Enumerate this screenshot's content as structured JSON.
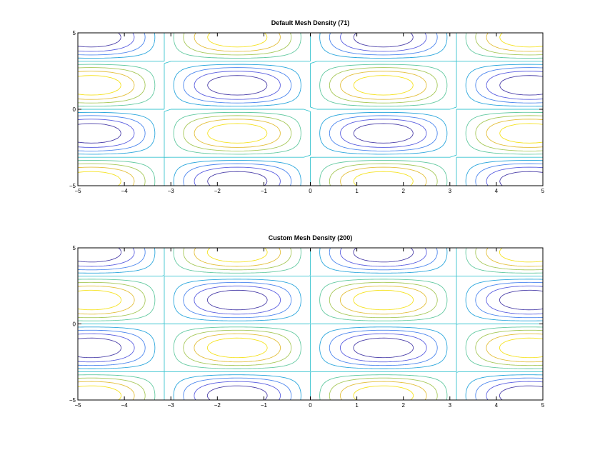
{
  "chart_data": [
    {
      "type": "contour",
      "title": "Default Mesh Density (71)",
      "function": "sin(x)*sin(y)",
      "mesh_density": 71,
      "xlim": [
        -5,
        5
      ],
      "ylim": [
        -5,
        5
      ],
      "xticks": [
        -5,
        -4,
        -3,
        -2,
        -1,
        0,
        1,
        2,
        3,
        4,
        5
      ],
      "yticks": [
        -5,
        0,
        5
      ],
      "levels": [
        -0.8,
        -0.6,
        -0.4,
        -0.2,
        0,
        0.2,
        0.4,
        0.6,
        0.8
      ],
      "colormap": "parula",
      "grid": false
    },
    {
      "type": "contour",
      "title": "Custom Mesh Density (200)",
      "function": "sin(x)*sin(y)",
      "mesh_density": 200,
      "xlim": [
        -5,
        5
      ],
      "ylim": [
        -5,
        5
      ],
      "xticks": [
        -5,
        -4,
        -3,
        -2,
        -1,
        0,
        1,
        2,
        3,
        4,
        5
      ],
      "yticks": [
        -5,
        0,
        5
      ],
      "levels": [
        -0.8,
        -0.6,
        -0.4,
        -0.2,
        0,
        0.2,
        0.4,
        0.6,
        0.8
      ],
      "colormap": "parula",
      "grid": false
    }
  ],
  "colors": {
    "level_-0.8": "#4a3ea8",
    "level_-0.6": "#5a5ee0",
    "level_-0.4": "#4c86ee",
    "level_-0.2": "#2aa6dc",
    "level_0": "#3bc4d0",
    "level_0.2": "#62c9a0",
    "level_0.4": "#a6c858",
    "level_0.6": "#e3bf3a",
    "level_0.8": "#f5e21e"
  }
}
